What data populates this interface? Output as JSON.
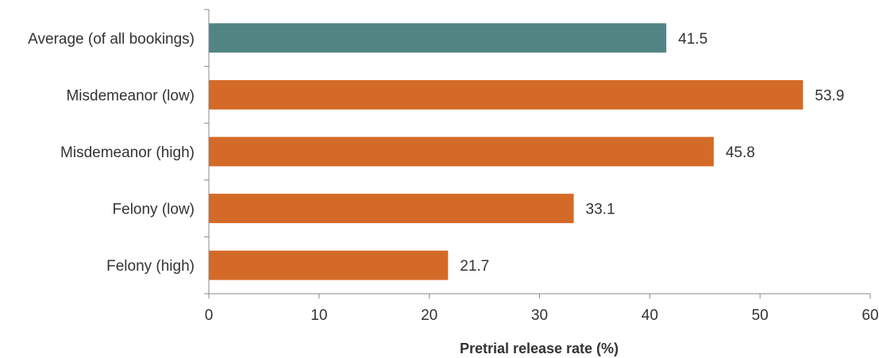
{
  "chart_data": {
    "type": "bar",
    "orientation": "horizontal",
    "categories": [
      "Average (of all bookings)",
      "Misdemeanor (low)",
      "Misdemeanor (high)",
      "Felony (low)",
      "Felony (high)"
    ],
    "values": [
      41.5,
      53.9,
      45.8,
      33.1,
      21.7
    ],
    "value_labels": [
      "41.5",
      "53.9",
      "45.8",
      "33.1",
      "21.7"
    ],
    "bar_colors": [
      "#518584",
      "#d46a27",
      "#d46a27",
      "#d46a27",
      "#d46a27"
    ],
    "xlabel": "Pretrial release rate (%)",
    "xlim": [
      0,
      60
    ],
    "xticks": [
      0,
      10,
      20,
      30,
      40,
      50,
      60
    ],
    "grid": false,
    "legend": "none"
  }
}
